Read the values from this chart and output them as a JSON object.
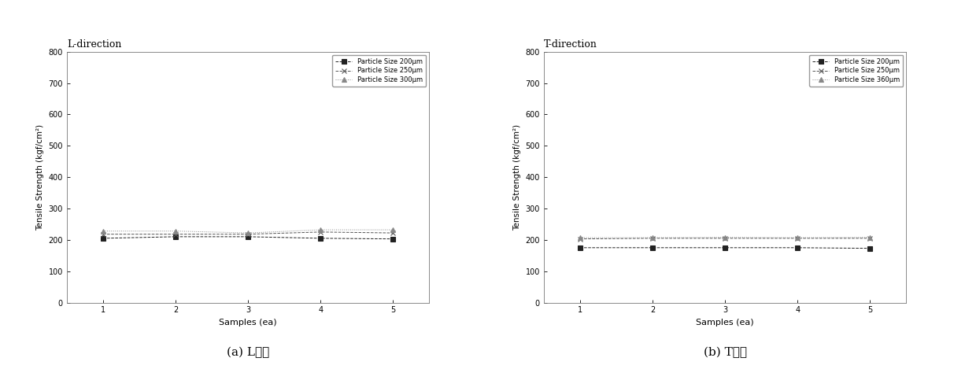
{
  "left": {
    "title": "L-direction",
    "xlabel": "Samples (ea)",
    "ylabel": "Tensile Strength (kgf/cm²)",
    "xlim": [
      0.5,
      5.5
    ],
    "ylim": [
      0,
      800
    ],
    "yticks": [
      0,
      100,
      200,
      300,
      400,
      500,
      600,
      700,
      800
    ],
    "xticks": [
      1,
      2,
      3,
      4,
      5
    ],
    "series": [
      {
        "label": "Particle Size 200μm",
        "x": [
          1,
          2,
          3,
          4,
          5
        ],
        "y": [
          205,
          210,
          210,
          205,
          203
        ],
        "marker": "s",
        "linestyle": "--",
        "color": "#222222"
      },
      {
        "label": "Particle Size 250μm",
        "x": [
          1,
          2,
          3,
          4,
          5
        ],
        "y": [
          218,
          218,
          218,
          225,
          222
        ],
        "marker": "x",
        "linestyle": "--",
        "color": "#555555"
      },
      {
        "label": "Particle Size 300μm",
        "x": [
          1,
          2,
          3,
          4,
          5
        ],
        "y": [
          228,
          228,
          222,
          232,
          232
        ],
        "marker": "^",
        "linestyle": ":",
        "color": "#888888"
      }
    ],
    "caption": "(a) L방향"
  },
  "right": {
    "title": "T-direction",
    "xlabel": "Samples (ea)",
    "ylabel": "Tensile Strength (kgf/cm²)",
    "xlim": [
      0.5,
      5.5
    ],
    "ylim": [
      0,
      800
    ],
    "yticks": [
      0,
      100,
      200,
      300,
      400,
      500,
      600,
      700,
      800
    ],
    "xticks": [
      1,
      2,
      3,
      4,
      5
    ],
    "series": [
      {
        "label": "Particle Size 200μm",
        "x": [
          1,
          2,
          3,
          4,
          5
        ],
        "y": [
          175,
          175,
          175,
          175,
          173
        ],
        "marker": "s",
        "linestyle": "--",
        "color": "#222222"
      },
      {
        "label": "Particle Size 250μm",
        "x": [
          1,
          2,
          3,
          4,
          5
        ],
        "y": [
          203,
          205,
          205,
          205,
          205
        ],
        "marker": "x",
        "linestyle": "--",
        "color": "#555555"
      },
      {
        "label": "Particle Size 360μm",
        "x": [
          1,
          2,
          3,
          4,
          5
        ],
        "y": [
          207,
          207,
          208,
          207,
          208
        ],
        "marker": "^",
        "linestyle": ":",
        "color": "#888888"
      }
    ],
    "caption": "(b) T방향"
  },
  "background_color": "#ffffff",
  "figure_width": 12.12,
  "figure_height": 4.69,
  "dpi": 100
}
